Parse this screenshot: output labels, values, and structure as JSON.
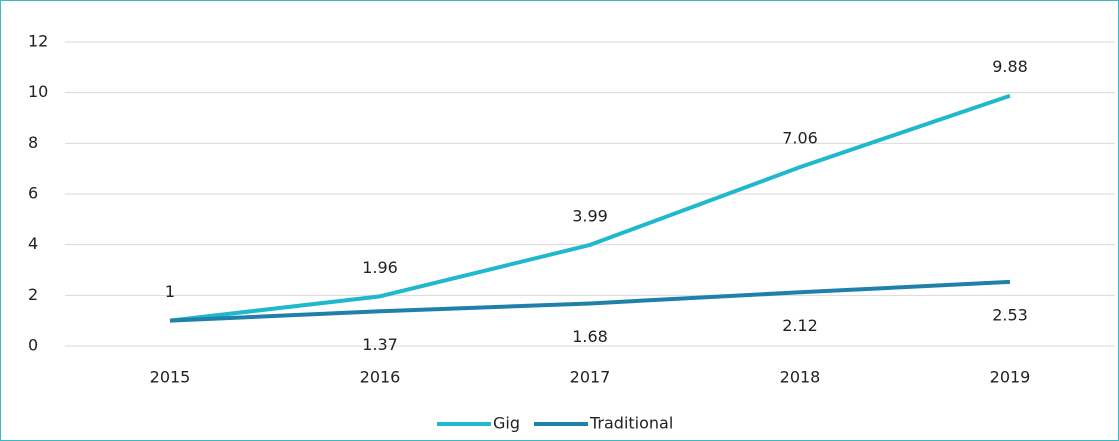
{
  "chart_data": {
    "type": "line",
    "categories": [
      "2015",
      "2016",
      "2017",
      "2018",
      "2019"
    ],
    "series": [
      {
        "name": "Gig",
        "color": "#1fb8cc",
        "values": [
          1,
          1.96,
          3.99,
          7.06,
          9.88
        ]
      },
      {
        "name": "Traditional",
        "color": "#1f80aa",
        "values": [
          1,
          1.37,
          1.68,
          2.12,
          2.53
        ],
        "value_labels": [
          null,
          "1.37",
          "1.68",
          "2.12",
          "2.53"
        ]
      }
    ],
    "ylim": [
      0,
      12
    ],
    "yticks": [
      0,
      2,
      4,
      6,
      8,
      10,
      12
    ],
    "grid": true,
    "legend": "bottom"
  }
}
